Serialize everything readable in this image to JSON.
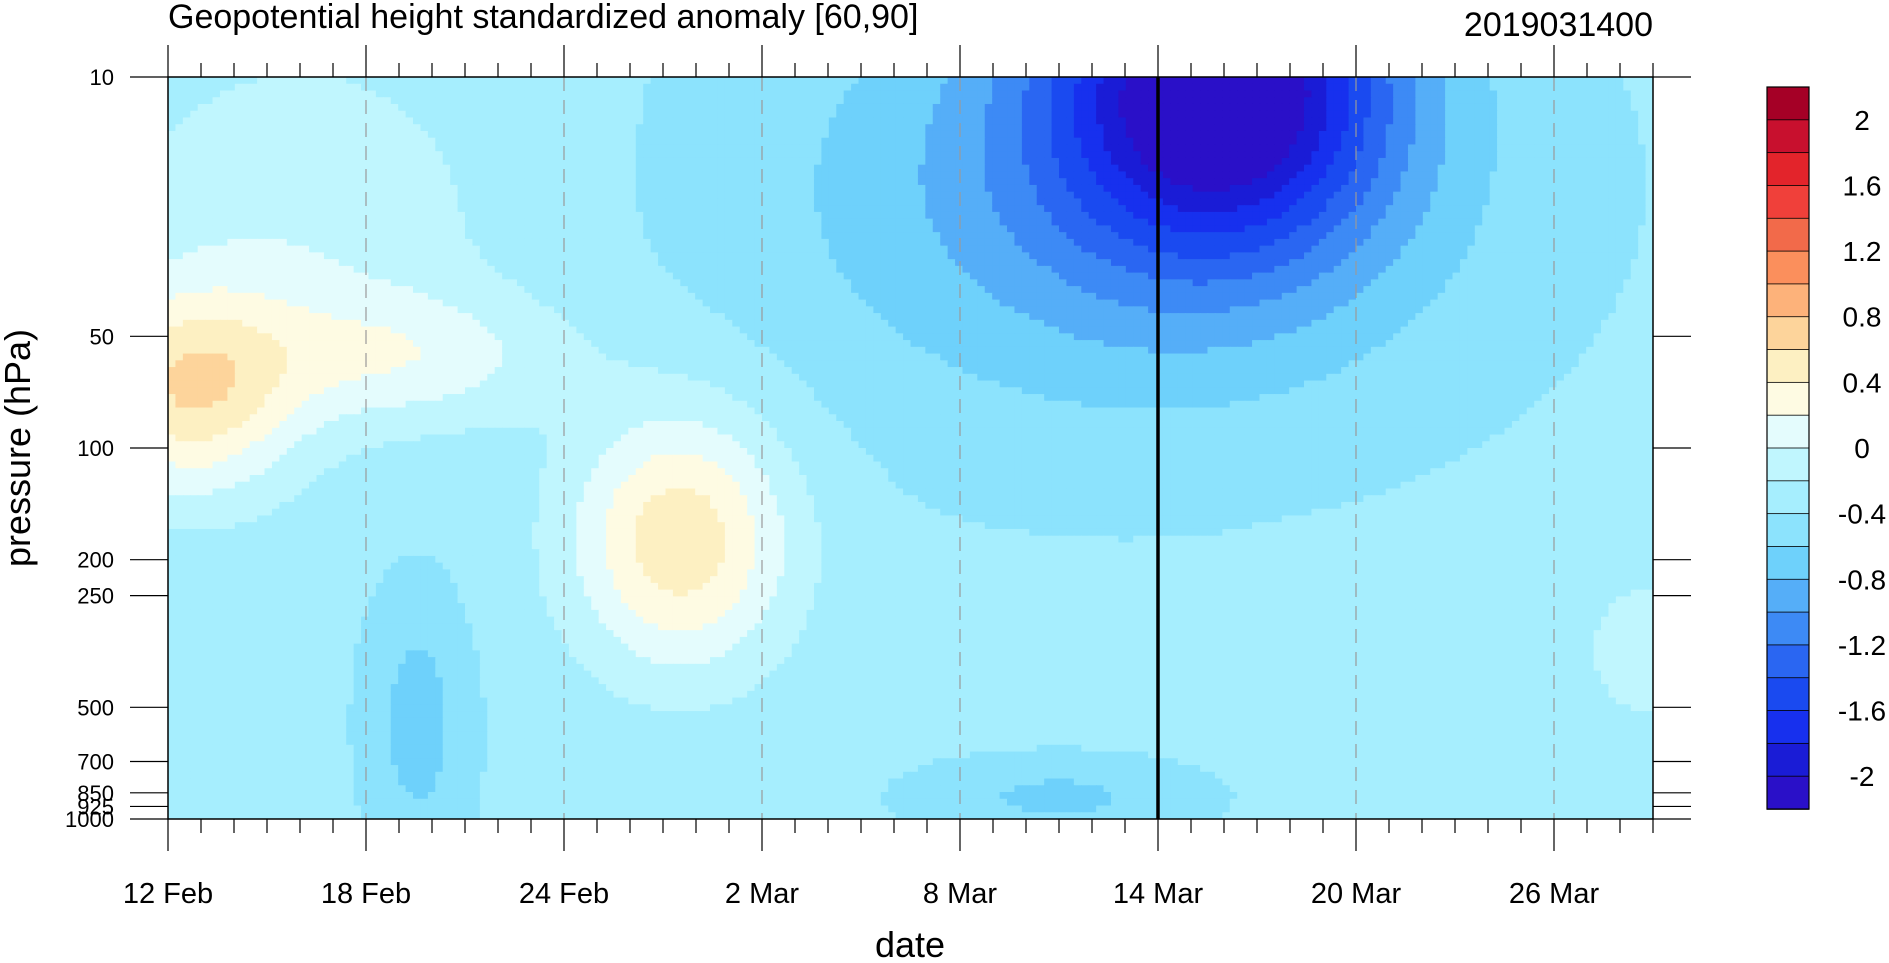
{
  "chart_data": {
    "type": "heatmap",
    "subtype": "filled contour (time–pressure cross-section)",
    "title": "Geopotential height standardized anomaly [60,90]",
    "run_label": "2019031400",
    "xlabel": "date",
    "ylabel": "pressure (hPa)",
    "x_ticks": [
      "12 Feb",
      "18 Feb",
      "24 Feb",
      "2 Mar",
      "8 Mar",
      "14 Mar",
      "20 Mar",
      "26 Mar"
    ],
    "x_tick_days": [
      0,
      6,
      12,
      18,
      24,
      30,
      36,
      42
    ],
    "xlim_days": [
      0,
      45
    ],
    "marker_day": 30,
    "y_ticks": [
      "10",
      "50",
      "100",
      "200",
      "250",
      "500",
      "700",
      "850",
      "925",
      "1000"
    ],
    "y_tick_values": [
      10,
      50,
      100,
      200,
      250,
      500,
      700,
      850,
      925,
      1000
    ],
    "ylim": [
      10,
      1000
    ],
    "y_scale": "log",
    "y_reversed": true,
    "grid": "dashed vertical lines at labeled dates",
    "colorbar": {
      "labels": [
        "2",
        "1.6",
        "1.2",
        "0.8",
        "0.4",
        "0",
        "-0.4",
        "-0.8",
        "-1.2",
        "-1.6",
        "-2"
      ],
      "levels": [
        2.2,
        2.0,
        1.8,
        1.6,
        1.4,
        1.2,
        1.0,
        0.8,
        0.6,
        0.4,
        0.2,
        0.0,
        -0.2,
        -0.4,
        -0.6,
        -0.8,
        -1.0,
        -1.2,
        -1.4,
        -1.6,
        -1.8,
        -2.0,
        -2.2
      ],
      "colors": [
        "#a50026",
        "#c8102e",
        "#e3242b",
        "#f0403a",
        "#f26a4a",
        "#fb8f5c",
        "#fdb27a",
        "#fdd49b",
        "#fdf0c2",
        "#fefbe3",
        "#e4fcfd",
        "#c0f6fe",
        "#a6eefe",
        "#8ce3fd",
        "#6ed1fb",
        "#55aef8",
        "#3d8af5",
        "#2a66f2",
        "#1a4af0",
        "#1730ee",
        "#1a1cd6",
        "#2a10c8"
      ]
    },
    "key_features": [
      {
        "kind": "min",
        "day": 32,
        "pressure": 12,
        "value": -1.7
      },
      {
        "kind": "max",
        "day": 15,
        "pressure": 170,
        "value": 0.55
      },
      {
        "kind": "max",
        "day": 0,
        "pressure": 80,
        "value": 0.55
      }
    ]
  }
}
